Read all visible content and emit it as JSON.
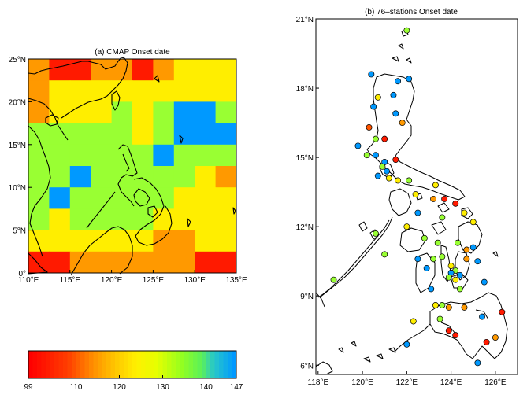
{
  "panel_a": {
    "title": "(a) CMAP Onset date",
    "x_ticks": [
      "110°E",
      "115°E",
      "120°E",
      "125°E",
      "130°E",
      "135°E"
    ],
    "y_ticks": [
      "0°",
      "5°N",
      "10°N",
      "15°N",
      "20°N",
      "25°N"
    ]
  },
  "panel_b": {
    "title": "(b) 76–stations Onset date",
    "x_ticks": [
      "118°E",
      "120°E",
      "122°E",
      "124°E",
      "126°E"
    ],
    "y_ticks": [
      "6°N",
      "9°N",
      "12°N",
      "15°N",
      "18°N",
      "21°N"
    ]
  },
  "colorbar": {
    "tick_labels": [
      "99",
      "110",
      "120",
      "130",
      "140",
      "147"
    ],
    "min": 99,
    "max": 147
  },
  "colors": {
    "red": "#ff1a00",
    "orange_red": "#ff5500",
    "orange": "#ff9900",
    "yellow_orange": "#ffcc00",
    "yellow": "#ffee00",
    "lime": "#99ff33",
    "blue": "#0099ff",
    "dark_red": "#cc1a00"
  },
  "chart_data": {
    "type": "heatmap",
    "title": "(a) CMAP Onset date",
    "x_extent": [
      110,
      135
    ],
    "y_extent": [
      0,
      25
    ],
    "cell_size_deg": 2.5,
    "note_rows": "rows from north (25N) to south (0)",
    "grid": [
      [
        "orange",
        "red",
        "red",
        "orange",
        "orange",
        "red",
        "orange",
        "yellow",
        "yellow",
        "yellow"
      ],
      [
        "orange",
        "yellow",
        "yellow",
        "yellow",
        "yellow",
        "yellow",
        "yellow",
        "yellow",
        "yellow",
        "yellow"
      ],
      [
        "orange",
        "yellow",
        "yellow",
        "yellow",
        "lime",
        "yellow",
        "lime",
        "blue",
        "blue",
        "lime"
      ],
      [
        "lime",
        "lime",
        "lime",
        "lime",
        "lime",
        "yellow",
        "lime",
        "blue",
        "blue",
        "blue"
      ],
      [
        "lime",
        "lime",
        "lime",
        "lime",
        "lime",
        "lime",
        "blue",
        "lime",
        "lime",
        "lime"
      ],
      [
        "lime",
        "lime",
        "blue",
        "lime",
        "lime",
        "lime",
        "lime",
        "lime",
        "yellow",
        "orange"
      ],
      [
        "lime",
        "blue",
        "lime",
        "lime",
        "lime",
        "lime",
        "lime",
        "yellow",
        "yellow",
        "yellow"
      ],
      [
        "lime",
        "yellow",
        "lime",
        "lime",
        "lime",
        "lime",
        "yellow",
        "yellow",
        "yellow",
        "yellow"
      ],
      [
        "yellow",
        "yellow",
        "yellow",
        "yellow",
        "yellow",
        "yellow",
        "orange",
        "orange",
        "yellow",
        "yellow"
      ],
      [
        "red",
        "red",
        "orange",
        "orange",
        "orange",
        "orange",
        "orange",
        "orange",
        "red",
        "red"
      ]
    ],
    "stations": [
      {
        "lon": 122.0,
        "lat": 20.5,
        "v": "lime"
      },
      {
        "lon": 120.4,
        "lat": 18.6,
        "v": "blue"
      },
      {
        "lon": 121.6,
        "lat": 18.3,
        "v": "blue"
      },
      {
        "lon": 120.7,
        "lat": 17.6,
        "v": "yellow"
      },
      {
        "lon": 121.4,
        "lat": 17.7,
        "v": "blue"
      },
      {
        "lon": 122.1,
        "lat": 18.4,
        "v": "blue"
      },
      {
        "lon": 120.5,
        "lat": 17.2,
        "v": "blue"
      },
      {
        "lon": 121.5,
        "lat": 16.9,
        "v": "blue"
      },
      {
        "lon": 121.8,
        "lat": 16.5,
        "v": "orange"
      },
      {
        "lon": 120.3,
        "lat": 16.3,
        "v": "orange_red"
      },
      {
        "lon": 120.6,
        "lat": 15.8,
        "v": "lime"
      },
      {
        "lon": 121.0,
        "lat": 15.8,
        "v": "red"
      },
      {
        "lon": 119.8,
        "lat": 15.5,
        "v": "blue"
      },
      {
        "lon": 120.2,
        "lat": 15.1,
        "v": "lime"
      },
      {
        "lon": 120.6,
        "lat": 15.1,
        "v": "blue"
      },
      {
        "lon": 121.0,
        "lat": 14.8,
        "v": "blue"
      },
      {
        "lon": 121.5,
        "lat": 14.9,
        "v": "red"
      },
      {
        "lon": 120.9,
        "lat": 14.6,
        "v": "lime"
      },
      {
        "lon": 121.1,
        "lat": 14.4,
        "v": "blue"
      },
      {
        "lon": 120.7,
        "lat": 14.2,
        "v": "blue"
      },
      {
        "lon": 121.2,
        "lat": 14.1,
        "v": "yellow"
      },
      {
        "lon": 121.6,
        "lat": 14.0,
        "v": "yellow"
      },
      {
        "lon": 122.1,
        "lat": 14.0,
        "v": "lime"
      },
      {
        "lon": 123.3,
        "lat": 13.8,
        "v": "yellow"
      },
      {
        "lon": 122.4,
        "lat": 13.4,
        "v": "yellow"
      },
      {
        "lon": 123.2,
        "lat": 13.2,
        "v": "orange"
      },
      {
        "lon": 123.7,
        "lat": 13.2,
        "v": "red"
      },
      {
        "lon": 124.2,
        "lat": 13.0,
        "v": "red"
      },
      {
        "lon": 124.6,
        "lat": 12.6,
        "v": "yellow"
      },
      {
        "lon": 122.5,
        "lat": 12.6,
        "v": "blue"
      },
      {
        "lon": 123.6,
        "lat": 12.4,
        "v": "lime"
      },
      {
        "lon": 125.0,
        "lat": 12.2,
        "v": "yellow"
      },
      {
        "lon": 122.0,
        "lat": 12.0,
        "v": "yellow"
      },
      {
        "lon": 120.6,
        "lat": 11.7,
        "v": "lime"
      },
      {
        "lon": 122.8,
        "lat": 11.5,
        "v": "lime"
      },
      {
        "lon": 123.4,
        "lat": 11.3,
        "v": "lime"
      },
      {
        "lon": 124.3,
        "lat": 11.3,
        "v": "lime"
      },
      {
        "lon": 125.0,
        "lat": 11.1,
        "v": "blue"
      },
      {
        "lon": 124.7,
        "lat": 11.0,
        "v": "orange"
      },
      {
        "lon": 121.0,
        "lat": 10.8,
        "v": "lime"
      },
      {
        "lon": 122.5,
        "lat": 10.6,
        "v": "blue"
      },
      {
        "lon": 123.2,
        "lat": 10.6,
        "v": "lime"
      },
      {
        "lon": 123.6,
        "lat": 10.7,
        "v": "lime"
      },
      {
        "lon": 124.7,
        "lat": 10.6,
        "v": "orange"
      },
      {
        "lon": 125.2,
        "lat": 10.5,
        "v": "blue"
      },
      {
        "lon": 122.9,
        "lat": 10.2,
        "v": "blue"
      },
      {
        "lon": 124.0,
        "lat": 10.3,
        "v": "yellow"
      },
      {
        "lon": 124.2,
        "lat": 10.1,
        "v": "lime"
      },
      {
        "lon": 124.0,
        "lat": 10.0,
        "v": "blue"
      },
      {
        "lon": 124.4,
        "lat": 9.9,
        "v": "blue"
      },
      {
        "lon": 123.9,
        "lat": 9.8,
        "v": "lime"
      },
      {
        "lon": 124.2,
        "lat": 9.7,
        "v": "yellow"
      },
      {
        "lon": 118.7,
        "lat": 9.7,
        "v": "lime"
      },
      {
        "lon": 123.1,
        "lat": 9.3,
        "v": "blue"
      },
      {
        "lon": 124.4,
        "lat": 9.3,
        "v": "lime"
      },
      {
        "lon": 125.5,
        "lat": 9.6,
        "v": "blue"
      },
      {
        "lon": 123.6,
        "lat": 8.6,
        "v": "lime"
      },
      {
        "lon": 123.3,
        "lat": 8.6,
        "v": "yellow"
      },
      {
        "lon": 123.9,
        "lat": 8.5,
        "v": "orange"
      },
      {
        "lon": 124.6,
        "lat": 8.5,
        "v": "orange"
      },
      {
        "lon": 126.3,
        "lat": 8.3,
        "v": "red"
      },
      {
        "lon": 125.4,
        "lat": 8.1,
        "v": "blue"
      },
      {
        "lon": 123.5,
        "lat": 8.0,
        "v": "lime"
      },
      {
        "lon": 122.3,
        "lat": 7.9,
        "v": "yellow"
      },
      {
        "lon": 123.9,
        "lat": 7.5,
        "v": "red"
      },
      {
        "lon": 124.2,
        "lat": 7.3,
        "v": "red"
      },
      {
        "lon": 126.0,
        "lat": 7.2,
        "v": "orange"
      },
      {
        "lon": 125.6,
        "lat": 7.0,
        "v": "red"
      },
      {
        "lon": 122.0,
        "lat": 6.9,
        "v": "blue"
      },
      {
        "lon": 125.2,
        "lat": 6.1,
        "v": "blue"
      }
    ]
  }
}
